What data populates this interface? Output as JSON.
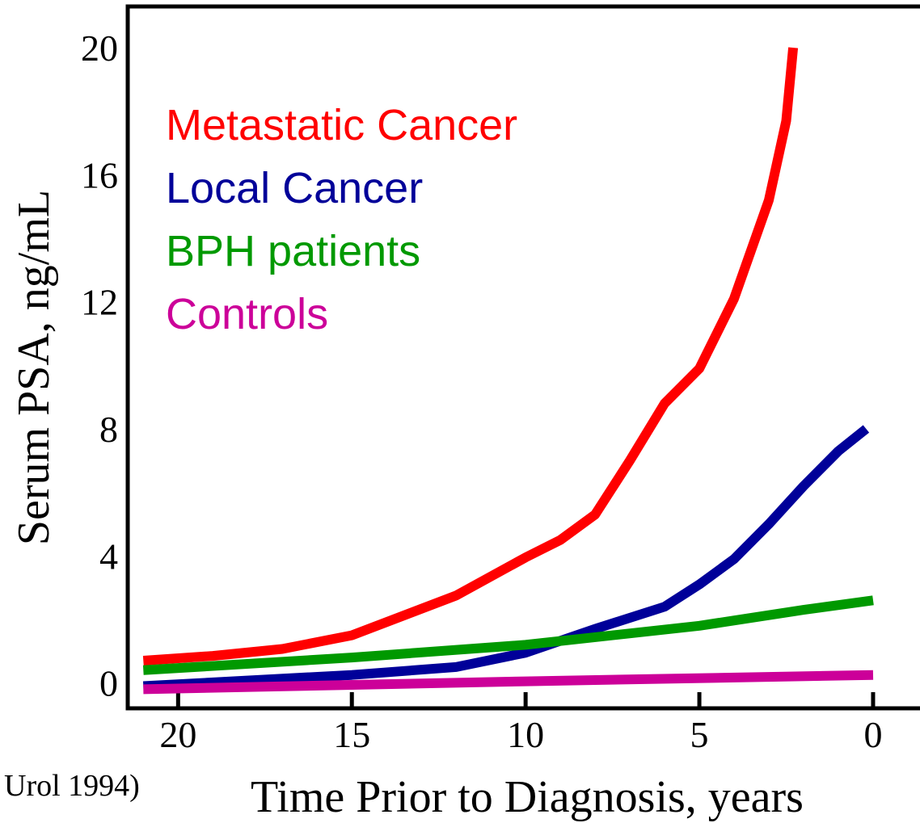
{
  "chart_data": {
    "type": "line",
    "x_label": "Time Prior to Diagnosis, years",
    "y_label": "Serum PSA, ng/mL",
    "annotation": "Urol 1994)",
    "xlim": [
      21.45,
      -1.35
    ],
    "xticks": [
      20,
      15,
      10,
      5,
      0
    ],
    "ylim": [
      -0.8,
      21.3
    ],
    "yticks": [
      0,
      4,
      8,
      12,
      16,
      20
    ],
    "series": [
      {
        "name": "Metastatic Cancer",
        "color": "#ff0000",
        "x": [
          21,
          19,
          17,
          15,
          12,
          10,
          9,
          8,
          7,
          6,
          5,
          4,
          3,
          2.5,
          2.3
        ],
        "values": [
          0.7,
          0.85,
          1.07,
          1.5,
          2.75,
          3.95,
          4.5,
          5.3,
          7.0,
          8.8,
          9.9,
          12.1,
          15.2,
          17.7,
          20.0
        ]
      },
      {
        "name": "Local Cancer",
        "color": "#000099",
        "x": [
          21,
          15,
          12,
          10,
          8,
          6,
          5,
          4,
          3,
          2,
          1,
          0.2
        ],
        "values": [
          -0.1,
          0.25,
          0.5,
          0.95,
          1.7,
          2.4,
          3.1,
          3.9,
          5.0,
          6.2,
          7.3,
          8.0
        ]
      },
      {
        "name": "BPH patients",
        "color": "#009900",
        "x": [
          21,
          15,
          10,
          5,
          2,
          0
        ],
        "values": [
          0.4,
          0.8,
          1.2,
          1.8,
          2.3,
          2.6
        ]
      },
      {
        "name": "Controls",
        "color": "#cc0099",
        "x": [
          21,
          10,
          0
        ],
        "values": [
          -0.2,
          0.05,
          0.25
        ]
      }
    ]
  }
}
